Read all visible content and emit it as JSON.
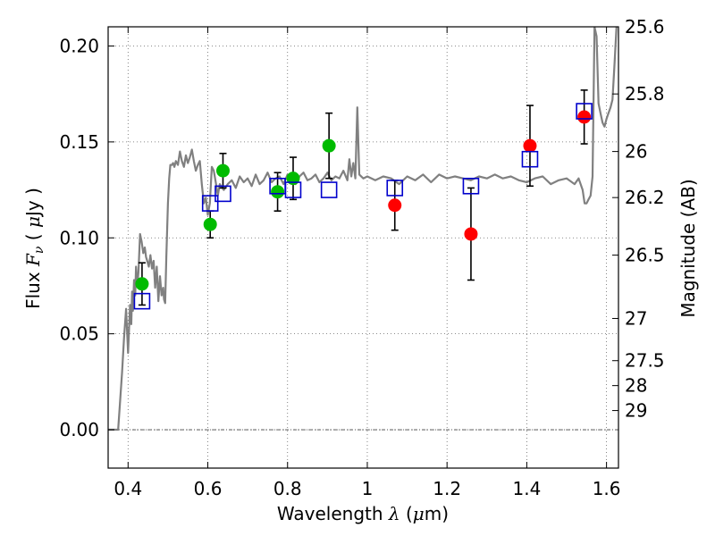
{
  "chart_data": {
    "type": "scatter",
    "xlabel": {
      "prefix": "Wavelength",
      "symbol": "λ",
      "unit_open": " (",
      "unit_mu": "μ",
      "unit_rest": "m)"
    },
    "ylabel": {
      "prefix": "Flux",
      "symbol": "F",
      "subscript": "ν",
      "unit_open": " ( ",
      "unit_mu": "μ",
      "unit_rest": "Jy )"
    },
    "ylabel_right": "Magnitude (AB)",
    "xlim": [
      0.35,
      1.63
    ],
    "ylim": [
      -0.02,
      0.21
    ],
    "xticks": [
      0.4,
      0.6,
      0.8,
      1.0,
      1.2,
      1.4,
      1.6
    ],
    "xtick_labels": [
      "0.4",
      "0.6",
      "0.8",
      "1",
      "1.2",
      "1.4",
      "1.6"
    ],
    "yticks": [
      0.0,
      0.05,
      0.1,
      0.15,
      0.2
    ],
    "ytick_labels": [
      "0.00",
      "0.05",
      "0.10",
      "0.15",
      "0.20"
    ],
    "right_ticks": [
      {
        "label": "25.6",
        "flux": 0.21
      },
      {
        "label": "25.8",
        "flux": 0.175
      },
      {
        "label": "26",
        "flux": 0.145
      },
      {
        "label": "26.2",
        "flux": 0.121
      },
      {
        "label": "26.5",
        "flux": 0.091
      },
      {
        "label": "27",
        "flux": 0.058
      },
      {
        "label": "27.5",
        "flux": 0.036
      },
      {
        "label": "28",
        "flux": 0.023
      },
      {
        "label": "29",
        "flux": 0.01
      }
    ],
    "grid": true,
    "colors": {
      "green": "#00bb00",
      "red": "#ff0000",
      "blue": "#0000cc",
      "model": "#808080",
      "grid": "#666666"
    },
    "series": [
      {
        "name": "green-photometry",
        "marker": "circle",
        "color": "#00bb00",
        "points": [
          {
            "x": 0.435,
            "y": 0.076,
            "err": 0.011
          },
          {
            "x": 0.606,
            "y": 0.107,
            "err": 0.007
          },
          {
            "x": 0.638,
            "y": 0.135,
            "err": 0.009
          },
          {
            "x": 0.775,
            "y": 0.124,
            "err": 0.01
          },
          {
            "x": 0.814,
            "y": 0.131,
            "err": 0.011
          },
          {
            "x": 0.904,
            "y": 0.148,
            "err": 0.017
          }
        ]
      },
      {
        "name": "red-photometry",
        "marker": "circle",
        "color": "#ff0000",
        "points": [
          {
            "x": 1.069,
            "y": 0.117,
            "err": 0.013
          },
          {
            "x": 1.26,
            "y": 0.102,
            "err": 0.024
          },
          {
            "x": 1.408,
            "y": 0.148,
            "err": 0.021
          },
          {
            "x": 1.544,
            "y": 0.163,
            "err": 0.014
          }
        ]
      },
      {
        "name": "model-bandpass",
        "marker": "square",
        "color": "#0000cc",
        "points": [
          {
            "x": 0.435,
            "y": 0.067
          },
          {
            "x": 0.606,
            "y": 0.118
          },
          {
            "x": 0.638,
            "y": 0.123
          },
          {
            "x": 0.775,
            "y": 0.127
          },
          {
            "x": 0.814,
            "y": 0.125
          },
          {
            "x": 0.904,
            "y": 0.125
          },
          {
            "x": 1.069,
            "y": 0.126
          },
          {
            "x": 1.26,
            "y": 0.127
          },
          {
            "x": 1.408,
            "y": 0.141
          },
          {
            "x": 1.544,
            "y": 0.166
          }
        ]
      }
    ],
    "model_spectrum": {
      "name": "model-spectrum",
      "color": "#808080",
      "x": [
        0.35,
        0.375,
        0.385,
        0.39,
        0.395,
        0.4,
        0.405,
        0.408,
        0.41,
        0.412,
        0.415,
        0.418,
        0.42,
        0.423,
        0.426,
        0.43,
        0.434,
        0.438,
        0.442,
        0.445,
        0.448,
        0.452,
        0.456,
        0.46,
        0.464,
        0.468,
        0.472,
        0.476,
        0.48,
        0.484,
        0.488,
        0.49,
        0.493,
        0.496,
        0.5,
        0.503,
        0.506,
        0.51,
        0.513,
        0.516,
        0.52,
        0.525,
        0.53,
        0.535,
        0.54,
        0.545,
        0.55,
        0.555,
        0.56,
        0.565,
        0.57,
        0.575,
        0.58,
        0.585,
        0.59,
        0.595,
        0.6,
        0.605,
        0.61,
        0.615,
        0.62,
        0.625,
        0.63,
        0.64,
        0.65,
        0.66,
        0.67,
        0.68,
        0.69,
        0.7,
        0.71,
        0.72,
        0.73,
        0.74,
        0.75,
        0.76,
        0.77,
        0.78,
        0.79,
        0.8,
        0.81,
        0.82,
        0.83,
        0.84,
        0.85,
        0.86,
        0.87,
        0.88,
        0.89,
        0.9,
        0.91,
        0.92,
        0.93,
        0.94,
        0.95,
        0.955,
        0.96,
        0.965,
        0.97,
        0.975,
        0.98,
        0.99,
        1.0,
        1.02,
        1.04,
        1.06,
        1.08,
        1.1,
        1.12,
        1.14,
        1.16,
        1.18,
        1.2,
        1.22,
        1.24,
        1.26,
        1.28,
        1.3,
        1.32,
        1.34,
        1.36,
        1.38,
        1.4,
        1.42,
        1.44,
        1.46,
        1.48,
        1.5,
        1.52,
        1.53,
        1.54,
        1.545,
        1.55,
        1.555,
        1.56,
        1.565,
        1.57,
        1.575,
        1.58,
        1.585,
        1.59,
        1.595,
        1.6,
        1.605,
        1.61,
        1.615,
        1.62,
        1.625
      ],
      "y": [
        0.0,
        0.0,
        0.03,
        0.048,
        0.063,
        0.04,
        0.065,
        0.055,
        0.072,
        0.062,
        0.078,
        0.07,
        0.085,
        0.075,
        0.082,
        0.102,
        0.098,
        0.092,
        0.095,
        0.09,
        0.088,
        0.085,
        0.091,
        0.084,
        0.088,
        0.074,
        0.085,
        0.067,
        0.08,
        0.07,
        0.074,
        0.068,
        0.066,
        0.09,
        0.118,
        0.131,
        0.138,
        0.138,
        0.139,
        0.137,
        0.14,
        0.138,
        0.145,
        0.14,
        0.137,
        0.143,
        0.139,
        0.142,
        0.146,
        0.14,
        0.135,
        0.138,
        0.14,
        0.128,
        0.118,
        0.121,
        0.112,
        0.118,
        0.137,
        0.135,
        0.129,
        0.122,
        0.128,
        0.125,
        0.128,
        0.13,
        0.126,
        0.132,
        0.129,
        0.131,
        0.127,
        0.133,
        0.128,
        0.13,
        0.134,
        0.129,
        0.131,
        0.132,
        0.128,
        0.133,
        0.131,
        0.128,
        0.132,
        0.134,
        0.13,
        0.131,
        0.133,
        0.129,
        0.131,
        0.134,
        0.13,
        0.132,
        0.131,
        0.135,
        0.13,
        0.141,
        0.132,
        0.139,
        0.131,
        0.168,
        0.133,
        0.131,
        0.132,
        0.13,
        0.132,
        0.131,
        0.128,
        0.132,
        0.13,
        0.133,
        0.129,
        0.133,
        0.131,
        0.132,
        0.131,
        0.13,
        0.132,
        0.131,
        0.133,
        0.131,
        0.132,
        0.13,
        0.129,
        0.131,
        0.132,
        0.128,
        0.13,
        0.131,
        0.128,
        0.131,
        0.125,
        0.118,
        0.118,
        0.12,
        0.122,
        0.132,
        0.21,
        0.205,
        0.17,
        0.165,
        0.16,
        0.158,
        0.162,
        0.165,
        0.168,
        0.172,
        0.19,
        0.21
      ]
    }
  }
}
